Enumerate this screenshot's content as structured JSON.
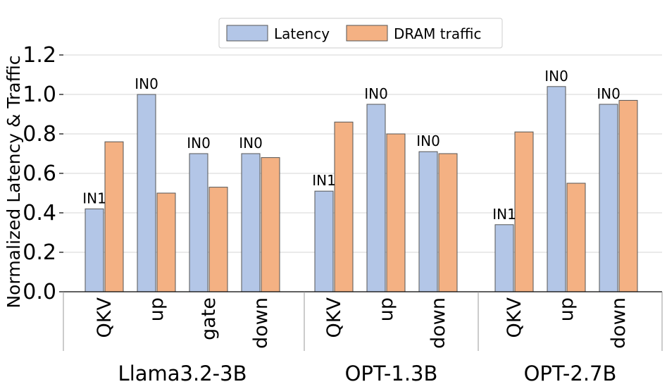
{
  "chart_data": {
    "type": "bar",
    "title": "",
    "xlabel": "",
    "ylabel": "Normalized Latency & Traffic",
    "ylim": [
      0,
      1.2
    ],
    "yticks": [
      "0.0",
      "0.2",
      "0.4",
      "0.6",
      "0.8",
      "1.0",
      "1.2"
    ],
    "grid": true,
    "legend_position": "top-center",
    "colors": {
      "Latency": "#b3c6e7",
      "DRAM traffic": "#f4b183",
      "edge": "#555555"
    },
    "series": [
      {
        "name": "Latency",
        "values": [
          0.42,
          1.0,
          0.7,
          0.7,
          0.51,
          0.95,
          0.71,
          0.34,
          1.04,
          0.95
        ]
      },
      {
        "name": "DRAM traffic",
        "values": [
          0.76,
          0.5,
          0.53,
          0.68,
          0.86,
          0.8,
          0.7,
          0.81,
          0.55,
          0.97
        ]
      }
    ],
    "categories": [
      "QKV",
      "up",
      "gate",
      "down",
      "QKV",
      "up",
      "down",
      "QKV",
      "up",
      "down"
    ],
    "groups": [
      {
        "name": "Llama3.2-3B",
        "count": 4
      },
      {
        "name": "OPT-1.3B",
        "count": 3
      },
      {
        "name": "OPT-2.7B",
        "count": 3
      }
    ],
    "annotations": [
      "IN1",
      "IN0",
      "IN0",
      "IN0",
      "IN1",
      "IN0",
      "IN0",
      "IN1",
      "IN0",
      "IN0"
    ]
  }
}
